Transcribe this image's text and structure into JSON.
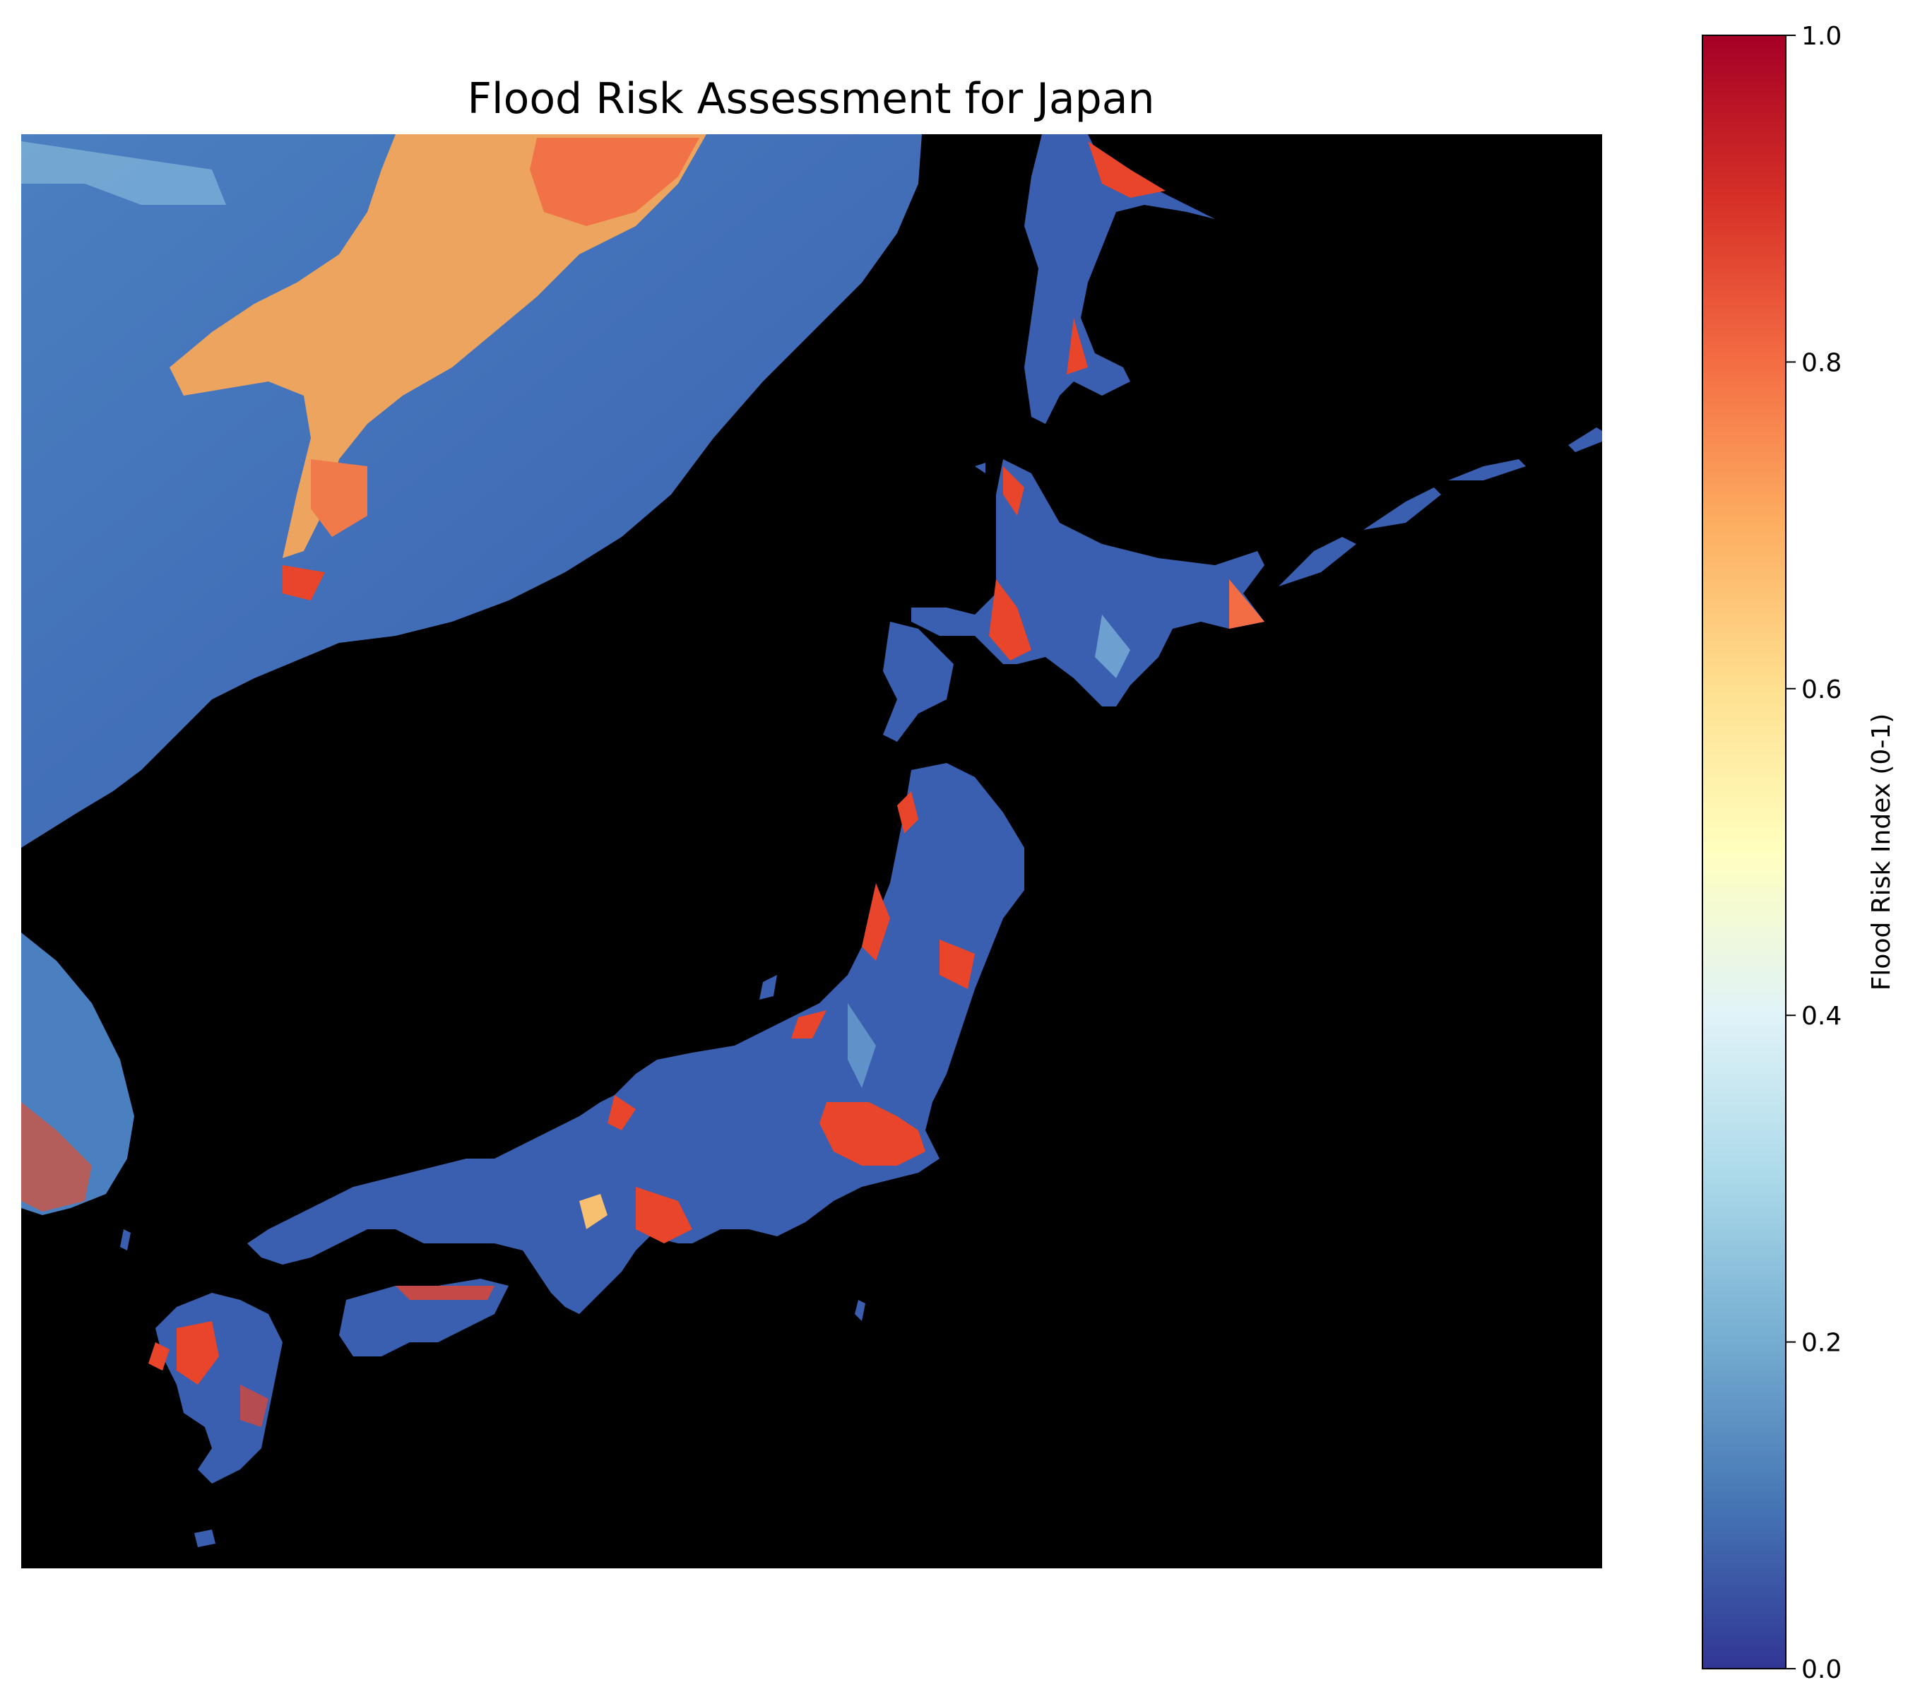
{
  "figure": {
    "title": "Flood Risk Assessment for Japan"
  },
  "map": {
    "background_color": "#000000",
    "land_low_color": "#3a5fb0",
    "land_high_color": "#e8452b",
    "land_mid_color": "#f6a65a"
  },
  "colorbar": {
    "label": "Flood Risk Index (0-1)",
    "min": 0.0,
    "max": 1.0,
    "ticks": [
      "0.0",
      "0.2",
      "0.4",
      "0.6",
      "0.8",
      "1.0"
    ],
    "tick_values": [
      0.0,
      0.2,
      0.4,
      0.6,
      0.8,
      1.0
    ],
    "colormap": "RdYlBu_r",
    "stops": [
      "#313695",
      "#4575b4",
      "#74add1",
      "#abd9e9",
      "#e0f3f8",
      "#ffffbf",
      "#fee090",
      "#fdae61",
      "#f46d43",
      "#d73027",
      "#a50026"
    ]
  }
}
